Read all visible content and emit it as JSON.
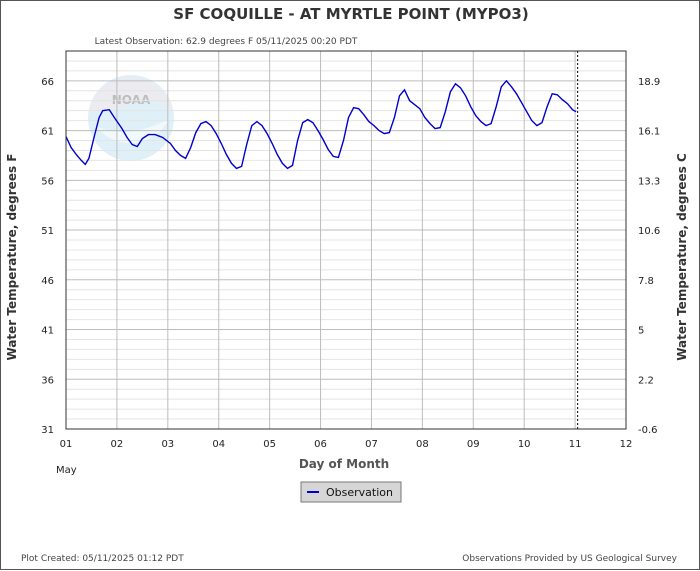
{
  "chart_data": {
    "type": "line",
    "title": "SF COQUILLE - AT MYRTLE POINT  (MYPO3)",
    "subtitle": "Latest Observation: 62.9 degrees F 05/11/2025 00:20 PDT",
    "xlabel": "Day of Month",
    "x_month_label": "May",
    "ylabel_left": "Water Temperature, degrees F",
    "ylabel_right": "Water Temperature, degrees C",
    "xlim": [
      1,
      12
    ],
    "ylim": [
      31,
      69
    ],
    "x_ticks": [
      "01",
      "02",
      "03",
      "04",
      "05",
      "06",
      "07",
      "08",
      "09",
      "10",
      "11",
      "12"
    ],
    "y_ticks_left": [
      "31",
      "36",
      "41",
      "46",
      "51",
      "56",
      "61",
      "66"
    ],
    "y_ticks_right": [
      "-0.6",
      "2.2",
      "5",
      "7.8",
      "10.6",
      "13.3",
      "16.1",
      "18.9"
    ],
    "grid": true,
    "latest_observation_x": 11.05,
    "series": [
      {
        "name": "Observation",
        "color": "#0000cc",
        "points": [
          [
            1.0,
            60.4
          ],
          [
            1.1,
            59.3
          ],
          [
            1.2,
            58.6
          ],
          [
            1.3,
            58.0
          ],
          [
            1.38,
            57.6
          ],
          [
            1.45,
            58.2
          ],
          [
            1.55,
            60.3
          ],
          [
            1.65,
            62.3
          ],
          [
            1.72,
            63.0
          ],
          [
            1.85,
            63.1
          ],
          [
            1.95,
            62.3
          ],
          [
            2.1,
            61.2
          ],
          [
            2.2,
            60.3
          ],
          [
            2.3,
            59.6
          ],
          [
            2.4,
            59.4
          ],
          [
            2.5,
            60.2
          ],
          [
            2.62,
            60.6
          ],
          [
            2.75,
            60.6
          ],
          [
            2.9,
            60.3
          ],
          [
            3.05,
            59.7
          ],
          [
            3.15,
            59.0
          ],
          [
            3.25,
            58.5
          ],
          [
            3.35,
            58.2
          ],
          [
            3.45,
            59.3
          ],
          [
            3.55,
            60.8
          ],
          [
            3.65,
            61.7
          ],
          [
            3.75,
            61.9
          ],
          [
            3.85,
            61.5
          ],
          [
            3.95,
            60.7
          ],
          [
            4.05,
            59.7
          ],
          [
            4.15,
            58.6
          ],
          [
            4.25,
            57.7
          ],
          [
            4.35,
            57.2
          ],
          [
            4.45,
            57.4
          ],
          [
            4.55,
            59.6
          ],
          [
            4.65,
            61.5
          ],
          [
            4.75,
            61.9
          ],
          [
            4.85,
            61.5
          ],
          [
            4.95,
            60.7
          ],
          [
            5.05,
            59.7
          ],
          [
            5.15,
            58.6
          ],
          [
            5.25,
            57.7
          ],
          [
            5.35,
            57.2
          ],
          [
            5.45,
            57.5
          ],
          [
            5.55,
            60.0
          ],
          [
            5.65,
            61.8
          ],
          [
            5.75,
            62.1
          ],
          [
            5.85,
            61.8
          ],
          [
            5.95,
            61.0
          ],
          [
            6.05,
            60.1
          ],
          [
            6.15,
            59.1
          ],
          [
            6.25,
            58.4
          ],
          [
            6.35,
            58.3
          ],
          [
            6.45,
            60.0
          ],
          [
            6.55,
            62.3
          ],
          [
            6.65,
            63.3
          ],
          [
            6.75,
            63.2
          ],
          [
            6.85,
            62.6
          ],
          [
            6.95,
            61.9
          ],
          [
            7.05,
            61.5
          ],
          [
            7.15,
            61.0
          ],
          [
            7.25,
            60.7
          ],
          [
            7.35,
            60.8
          ],
          [
            7.45,
            62.3
          ],
          [
            7.55,
            64.5
          ],
          [
            7.65,
            65.1
          ],
          [
            7.75,
            64.0
          ],
          [
            7.85,
            63.6
          ],
          [
            7.95,
            63.2
          ],
          [
            8.05,
            62.3
          ],
          [
            8.15,
            61.7
          ],
          [
            8.25,
            61.2
          ],
          [
            8.35,
            61.3
          ],
          [
            8.45,
            62.9
          ],
          [
            8.55,
            64.9
          ],
          [
            8.65,
            65.7
          ],
          [
            8.75,
            65.3
          ],
          [
            8.85,
            64.5
          ],
          [
            8.95,
            63.4
          ],
          [
            9.05,
            62.5
          ],
          [
            9.15,
            61.9
          ],
          [
            9.25,
            61.5
          ],
          [
            9.35,
            61.7
          ],
          [
            9.45,
            63.4
          ],
          [
            9.55,
            65.4
          ],
          [
            9.65,
            66.0
          ],
          [
            9.75,
            65.4
          ],
          [
            9.85,
            64.7
          ],
          [
            9.95,
            63.8
          ],
          [
            10.05,
            62.9
          ],
          [
            10.15,
            62.0
          ],
          [
            10.25,
            61.5
          ],
          [
            10.35,
            61.8
          ],
          [
            10.45,
            63.4
          ],
          [
            10.55,
            64.7
          ],
          [
            10.65,
            64.6
          ],
          [
            10.75,
            64.1
          ],
          [
            10.85,
            63.7
          ],
          [
            10.95,
            63.1
          ],
          [
            11.02,
            62.9
          ]
        ]
      }
    ],
    "legend_position": "bottom-center",
    "footer_left": "Plot Created: 05/11/2025 01:12 PDT",
    "footer_right": "Observations Provided by US Geological Survey",
    "watermark": "NOAA"
  }
}
